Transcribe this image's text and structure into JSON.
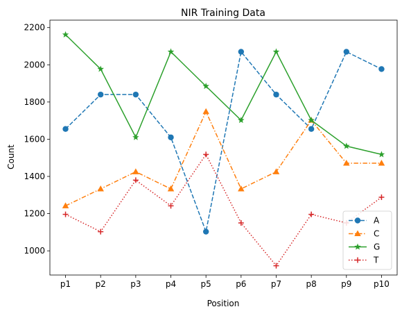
{
  "chart_data": {
    "type": "line",
    "title": "NIR Training Data",
    "xlabel": "Position",
    "ylabel": "Count",
    "categories": [
      "p1",
      "p2",
      "p3",
      "p4",
      "p5",
      "p6",
      "p7",
      "p8",
      "p9",
      "p10"
    ],
    "ylim": [
      870,
      2240
    ],
    "yticks": [
      1000,
      1200,
      1400,
      1600,
      1800,
      2000,
      2200
    ],
    "grid": false,
    "legend_position": "lower right",
    "series": [
      {
        "name": "A",
        "color": "#1f77b4",
        "linestyle": "dashed",
        "marker": "circle",
        "values": [
          1655,
          1840,
          1840,
          1610,
          1103,
          2070,
          1840,
          1655,
          2070,
          1977
        ]
      },
      {
        "name": "C",
        "color": "#ff7f0e",
        "linestyle": "dashdot",
        "marker": "triangle",
        "values": [
          1242,
          1333,
          1425,
          1333,
          1748,
          1333,
          1425,
          1702,
          1471,
          1471
        ]
      },
      {
        "name": "G",
        "color": "#2ca02c",
        "linestyle": "solid",
        "marker": "star",
        "values": [
          2162,
          1977,
          1610,
          2070,
          1885,
          1702,
          2070,
          1702,
          1563,
          1518
        ]
      },
      {
        "name": "T",
        "color": "#d62728",
        "linestyle": "dotted",
        "marker": "plus",
        "values": [
          1196,
          1103,
          1380,
          1242,
          1518,
          1150,
          920,
          1196,
          1150,
          1288
        ]
      }
    ]
  }
}
